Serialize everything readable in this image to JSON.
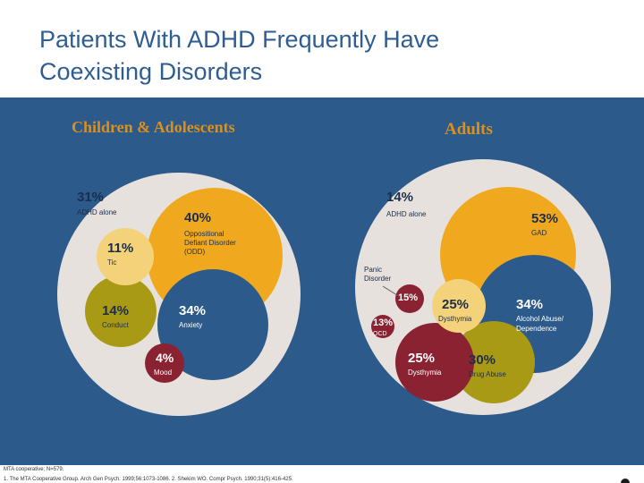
{
  "title_line1": "Patients With ADHD Frequently Have",
  "title_line2": "Coexisting Disorders",
  "colors": {
    "panel": "#2c5a8a",
    "outer_circle": "#e6e1dc",
    "orange": "#f0a91e",
    "light_yellow": "#f3d27a",
    "olive": "#a99a16",
    "blue": "#2c5a8a",
    "maroon": "#8a2232",
    "heading": "#d9901c"
  },
  "children": {
    "heading": "Children & Adolescents",
    "labels": {
      "alone": {
        "pct": "31%",
        "name": "ADHD alone"
      },
      "odd": {
        "pct": "40%",
        "name_line1": "Oppositional",
        "name_line2": "Defiant Disorder",
        "name_line3": "(ODD)"
      },
      "tic": {
        "pct": "11%",
        "name": "Tic"
      },
      "conduct": {
        "pct": "14%",
        "name": "Conduct"
      },
      "anxiety": {
        "pct": "34%",
        "name": "Anxiety"
      },
      "mood": {
        "pct": "4%",
        "name": "Mood"
      }
    }
  },
  "adults": {
    "heading": "Adults",
    "labels": {
      "alone": {
        "pct": "14%",
        "name": "ADHD alone"
      },
      "gad": {
        "pct": "53%",
        "name": "GAD"
      },
      "panic": {
        "pct": "15%",
        "name_line1": "Panic",
        "name_line2": "Disorder"
      },
      "ocd": {
        "pct": "13%",
        "name": "OCD"
      },
      "dysthymia_small": {
        "pct": "25%",
        "name": "Dysthymia"
      },
      "alcohol": {
        "pct": "34%",
        "name_line1": "Alcohol Abuse/",
        "name_line2": "Dependence"
      },
      "dysthymia": {
        "pct": "25%",
        "name": "Dysthymia"
      },
      "drug": {
        "pct": "30%",
        "name": "Drug Abuse"
      }
    }
  },
  "footnote1": "MTA cooperative; N=579.",
  "footnote2": "1. The MTA Cooperative Group. Arch Gen Psych. 1999;56:1073-1086. 2. Shekim WO. Compr Psych. 1990;31(5):416-425."
}
